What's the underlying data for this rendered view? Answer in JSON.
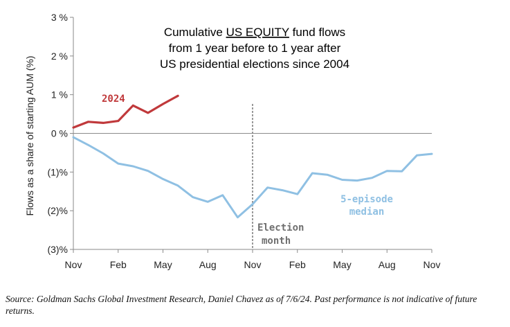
{
  "chart_data": {
    "type": "line",
    "title": {
      "line1_pre": "Cumulative ",
      "line1_underlined": "US EQUITY",
      "line1_post": " fund flows",
      "line2": "from 1 year before to 1 year after",
      "line3": "US presidential elections since 2004"
    },
    "ylabel": "Flows as a share of starting AUM (%)",
    "ylim": [
      -3,
      3
    ],
    "y_ticks": [
      {
        "value": 3,
        "label": "3 %"
      },
      {
        "value": 2,
        "label": "2 %"
      },
      {
        "value": 1,
        "label": "1 %"
      },
      {
        "value": 0,
        "label": "0 %"
      },
      {
        "value": -1,
        "label": "(1)%"
      },
      {
        "value": -2,
        "label": "(2)%"
      },
      {
        "value": -3,
        "label": "(3)%"
      }
    ],
    "xlim": [
      0,
      24
    ],
    "x_ticks": [
      {
        "value": 0,
        "label": "Nov"
      },
      {
        "value": 3,
        "label": "Feb"
      },
      {
        "value": 6,
        "label": "May"
      },
      {
        "value": 9,
        "label": "Aug"
      },
      {
        "value": 12,
        "label": "Nov"
      },
      {
        "value": 15,
        "label": "Feb"
      },
      {
        "value": 18,
        "label": "May"
      },
      {
        "value": 21,
        "label": "Aug"
      },
      {
        "value": 24,
        "label": "Nov"
      }
    ],
    "grid": false,
    "series": [
      {
        "name": "2024",
        "color": "#c0393b",
        "x": [
          0,
          1,
          2,
          3,
          4,
          5,
          6,
          7
        ],
        "values": [
          0.15,
          0.3,
          0.27,
          0.32,
          0.72,
          0.53,
          0.76,
          0.97
        ]
      },
      {
        "name": "5-episode median",
        "color": "#8fc0e3",
        "x": [
          0,
          1,
          2,
          3,
          4,
          5,
          6,
          7,
          8,
          9,
          10,
          11,
          12,
          13,
          14,
          15,
          16,
          17,
          18,
          19,
          20,
          21,
          22,
          23,
          24
        ],
        "values": [
          -0.1,
          -0.3,
          -0.52,
          -0.78,
          -0.85,
          -0.97,
          -1.18,
          -1.35,
          -1.65,
          -1.77,
          -1.6,
          -2.17,
          -1.83,
          -1.4,
          -1.47,
          -1.57,
          -1.03,
          -1.07,
          -1.2,
          -1.22,
          -1.15,
          -0.97,
          -0.98,
          -0.57,
          -0.53
        ]
      }
    ],
    "vertical_marker": {
      "x": 12,
      "label_line1": "Election",
      "label_line2": "month",
      "color": "#808080"
    },
    "annotations": [
      {
        "text": "2024",
        "color": "#c0393b"
      },
      {
        "text_line1": "5-episode",
        "text_line2": "median",
        "color": "#8fc0e3"
      }
    ]
  },
  "source": "Source: Goldman Sachs Global Investment Research, Daniel Chavez  as of 7/6/24. Past performance is not indicative of future returns."
}
